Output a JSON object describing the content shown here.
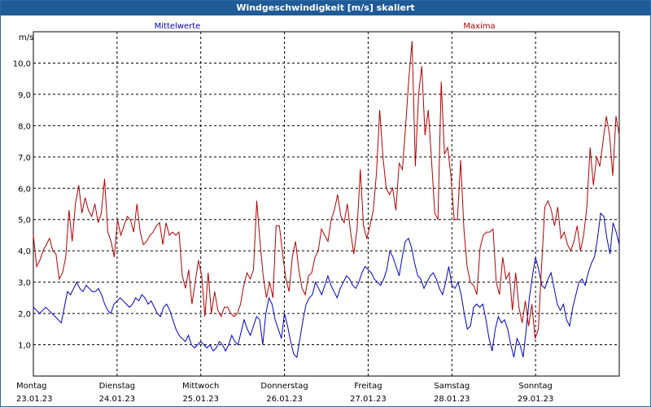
{
  "title": "Windgeschwindigkeit [m/s] skaliert",
  "chart_data": {
    "type": "line",
    "ylabel": "m/s",
    "ylim": [
      0,
      11.0
    ],
    "yticks": [
      1.0,
      2.0,
      3.0,
      4.0,
      5.0,
      6.0,
      7.0,
      8.0,
      9.0,
      10.0
    ],
    "yticklabels": [
      "1,0",
      "2,0",
      "3,0",
      "4,0",
      "5,0",
      "6,0",
      "7,0",
      "8,0",
      "9,0",
      "10,0"
    ],
    "x_unit": "days since Monday 23.01.23 00:00",
    "xlim": [
      0,
      7
    ],
    "xticks": [
      {
        "day": "Montag",
        "date": "23.01.23"
      },
      {
        "day": "Dienstag",
        "date": "24.01.23"
      },
      {
        "day": "Mittwoch",
        "date": "25.01.23"
      },
      {
        "day": "Donnerstag",
        "date": "26.01.23"
      },
      {
        "day": "Freitag",
        "date": "27.01.23"
      },
      {
        "day": "Samstag",
        "date": "28.01.23"
      },
      {
        "day": "Sonntag",
        "date": "29.01.23"
      }
    ],
    "grid": true,
    "legend_placement": "top",
    "series": [
      {
        "name": "Mittelwerte",
        "color": "#0000c8",
        "values": [
          2.2,
          2.1,
          2.0,
          2.1,
          2.2,
          2.1,
          2.0,
          1.9,
          1.8,
          1.7,
          2.2,
          2.7,
          2.6,
          2.8,
          3.0,
          2.8,
          2.7,
          2.9,
          2.8,
          2.7,
          2.7,
          2.8,
          2.6,
          2.3,
          2.1,
          2.0,
          2.3,
          2.4,
          2.5,
          2.4,
          2.3,
          2.2,
          2.3,
          2.5,
          2.4,
          2.6,
          2.5,
          2.3,
          2.4,
          2.2,
          2.0,
          1.9,
          2.2,
          2.3,
          2.1,
          1.8,
          1.5,
          1.3,
          1.2,
          1.1,
          1.3,
          1.0,
          0.9,
          1.0,
          1.1,
          1.0,
          0.9,
          1.0,
          0.8,
          0.9,
          1.1,
          1.0,
          0.8,
          1.0,
          1.3,
          1.1,
          1.0,
          1.4,
          1.8,
          1.5,
          1.3,
          1.6,
          1.9,
          1.8,
          1.0,
          2.0,
          2.5,
          2.3,
          1.8,
          1.5,
          1.2,
          2.0,
          1.6,
          1.1,
          0.7,
          0.6,
          1.2,
          1.8,
          2.3,
          2.5,
          2.6,
          3.0,
          2.8,
          2.6,
          2.9,
          3.2,
          2.9,
          2.7,
          2.5,
          2.8,
          3.0,
          3.2,
          3.1,
          2.9,
          2.8,
          3.0,
          3.3,
          3.5,
          3.4,
          3.3,
          3.1,
          3.0,
          2.9,
          3.1,
          3.4,
          4.0,
          3.8,
          3.5,
          3.2,
          3.8,
          4.3,
          4.4,
          4.1,
          3.6,
          3.2,
          3.1,
          2.8,
          3.0,
          3.2,
          3.3,
          3.1,
          2.8,
          2.6,
          3.0,
          3.5,
          2.9,
          2.8,
          3.0,
          2.6,
          2.0,
          1.5,
          1.6,
          2.2,
          2.3,
          2.2,
          2.3,
          1.8,
          1.2,
          0.8,
          1.5,
          1.9,
          1.7,
          1.8,
          1.5,
          1.0,
          0.6,
          1.2,
          1.0,
          0.6,
          1.5,
          2.5,
          3.2,
          3.8,
          3.4,
          2.9,
          2.8,
          3.1,
          3.3,
          2.8,
          2.3,
          2.1,
          2.3,
          1.8,
          1.6,
          2.2,
          2.6,
          3.0,
          3.1,
          2.9,
          3.3,
          3.6,
          3.8,
          4.4,
          5.2,
          5.1,
          4.4,
          3.9,
          4.9,
          4.6,
          4.2
        ]
      },
      {
        "name": "Maxima",
        "color": "#b40000",
        "values": [
          4.5,
          3.5,
          3.7,
          4.0,
          4.2,
          4.4,
          4.0,
          3.9,
          3.1,
          3.3,
          3.8,
          5.3,
          4.3,
          5.5,
          6.1,
          5.2,
          5.7,
          5.3,
          5.1,
          5.5,
          4.9,
          5.2,
          6.3,
          4.6,
          4.3,
          3.8,
          5.0,
          4.5,
          4.8,
          5.1,
          5.0,
          4.6,
          5.5,
          4.6,
          4.2,
          4.3,
          4.5,
          4.6,
          4.8,
          4.9,
          4.2,
          4.9,
          4.5,
          4.6,
          4.5,
          4.6,
          3.2,
          2.8,
          3.4,
          2.3,
          3.0,
          3.7,
          3.2,
          1.9,
          3.3,
          2.0,
          2.7,
          2.1,
          1.9,
          2.2,
          2.2,
          2.0,
          1.9,
          2.0,
          2.3,
          2.9,
          3.3,
          3.1,
          3.4,
          5.6,
          4.3,
          3.2,
          2.5,
          3.0,
          2.5,
          4.8,
          4.8,
          3.9,
          3.1,
          2.7,
          3.8,
          4.3,
          3.4,
          2.8,
          2.6,
          3.2,
          3.3,
          3.8,
          4.0,
          4.7,
          4.5,
          4.3,
          5.0,
          5.3,
          5.8,
          5.1,
          4.9,
          5.5,
          4.6,
          3.9,
          4.7,
          6.6,
          4.8,
          4.4,
          4.8,
          5.3,
          6.5,
          8.5,
          7.0,
          6.0,
          5.8,
          6.0,
          5.3,
          6.8,
          6.6,
          8.0,
          9.5,
          10.7,
          6.7,
          9.0,
          9.9,
          7.7,
          8.5,
          6.9,
          5.2,
          5.0,
          9.4,
          7.1,
          7.3,
          6.4,
          5.0,
          5.0,
          6.9,
          4.7,
          3.5,
          3.0,
          2.9,
          2.6,
          4.1,
          4.5,
          4.6,
          4.6,
          4.7,
          3.0,
          2.6,
          3.8,
          3.1,
          3.3,
          2.1,
          3.3,
          2.2,
          1.7,
          2.4,
          1.6,
          2.3,
          1.2,
          1.5,
          3.5,
          5.4,
          5.6,
          5.3,
          4.8,
          5.4,
          4.4,
          4.6,
          4.2,
          4.0,
          4.3,
          4.8,
          4.0,
          4.5,
          5.4,
          7.3,
          6.1,
          7.0,
          6.7,
          7.5,
          8.3,
          7.7,
          6.4,
          8.3,
          7.7
        ]
      }
    ]
  }
}
